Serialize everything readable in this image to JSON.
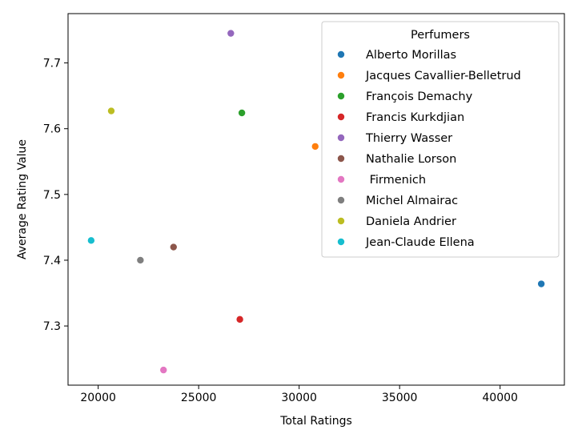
{
  "chart_data": {
    "type": "scatter",
    "title": "",
    "xlabel": "Total Ratings",
    "ylabel": "Average Rating Value",
    "xlim": [
      18500,
      43200
    ],
    "ylim": [
      7.21,
      7.775
    ],
    "x_ticks": [
      20000,
      25000,
      30000,
      35000,
      40000
    ],
    "y_ticks": [
      7.3,
      7.4,
      7.5,
      7.6,
      7.7
    ],
    "x_tick_labels": [
      "20000",
      "25000",
      "30000",
      "35000",
      "40000"
    ],
    "y_tick_labels": [
      "7.3",
      "7.4",
      "7.5",
      "7.6",
      "7.7"
    ],
    "grid": false,
    "legend": {
      "title": "Perfumers",
      "placement": "upper right"
    },
    "series": [
      {
        "name": "Alberto Morillas",
        "color": "#1f77b4",
        "x": 42050,
        "y": 7.364
      },
      {
        "name": "Jacques Cavallier-Belletrud",
        "color": "#ff7f0e",
        "x": 30800,
        "y": 7.573
      },
      {
        "name": "François Demachy",
        "color": "#2ca02c",
        "x": 27150,
        "y": 7.624
      },
      {
        "name": "Francis Kurkdjian",
        "color": "#d62728",
        "x": 27050,
        "y": 7.31
      },
      {
        "name": "Thierry Wasser",
        "color": "#9467bd",
        "x": 26600,
        "y": 7.745
      },
      {
        "name": "Nathalie Lorson",
        "color": "#8c564b",
        "x": 23750,
        "y": 7.42
      },
      {
        "name": " Firmenich",
        "color": "#e377c2",
        "x": 23250,
        "y": 7.233
      },
      {
        "name": "Michel Almairac",
        "color": "#7f7f7f",
        "x": 22100,
        "y": 7.4
      },
      {
        "name": "Daniela Andrier",
        "color": "#bcbd22",
        "x": 20650,
        "y": 7.627
      },
      {
        "name": "Jean-Claude Ellena",
        "color": "#17becf",
        "x": 19650,
        "y": 7.43
      }
    ]
  }
}
